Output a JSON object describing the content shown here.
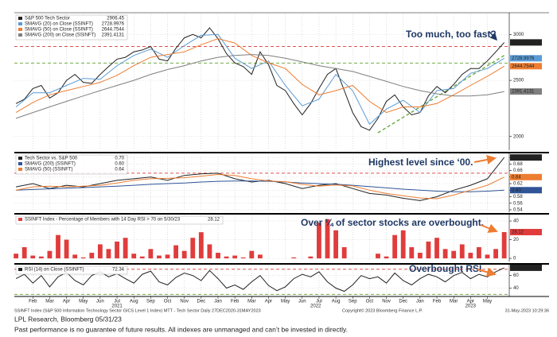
{
  "chart_data": [
    {
      "type": "line",
      "log": true,
      "ylim": [
        1900,
        3250
      ],
      "yticks": [
        3000,
        2500,
        2000
      ],
      "x": [
        0,
        0.5,
        1,
        1.5,
        2,
        2.5,
        3,
        3.5,
        4,
        4.5,
        5,
        5.5,
        6,
        6.5,
        7,
        7.5,
        8,
        8.5,
        9,
        9.5,
        10,
        10.5,
        11,
        11.5,
        12,
        12.5,
        13,
        13.5,
        14,
        14.5,
        15,
        15.5,
        16,
        16.5,
        17,
        17.5,
        18,
        18.5,
        19,
        19.5,
        20,
        20.5,
        21,
        21.5,
        22,
        22.5,
        23,
        23.5,
        24,
        24.5,
        25,
        25.5,
        26,
        26.5,
        27,
        27.5,
        28,
        28.5,
        29
      ],
      "series": [
        {
          "name": "S&P 500 Tech Sector",
          "color": "#222222",
          "last_label": "2906.45",
          "values": [
            2280,
            2320,
            2420,
            2450,
            2330,
            2380,
            2500,
            2560,
            2480,
            2470,
            2560,
            2640,
            2720,
            2740,
            2800,
            2820,
            2860,
            2720,
            2700,
            2840,
            2960,
            3000,
            2960,
            3080,
            2950,
            2780,
            2680,
            2640,
            2560,
            2800,
            2660,
            2450,
            2400,
            2280,
            2180,
            2280,
            2420,
            2560,
            2620,
            2400,
            2200,
            2080,
            2050,
            2150,
            2300,
            2360,
            2250,
            2180,
            2200,
            2350,
            2440,
            2380,
            2460,
            2560,
            2620,
            2620,
            2700,
            2800,
            2906.45
          ]
        },
        {
          "name": "SMAVG (20)  on Close (SSINFT)",
          "color": "#5b9bd5",
          "last_label": "2728.9976",
          "x": [
            0,
            1,
            2,
            3,
            4,
            5,
            6,
            7,
            8,
            9,
            10,
            11,
            12,
            13,
            14,
            15,
            16,
            17,
            18,
            19,
            20,
            21,
            22,
            23,
            24,
            25,
            26,
            27,
            28,
            29
          ],
          "values": [
            2250,
            2380,
            2380,
            2450,
            2520,
            2510,
            2650,
            2760,
            2830,
            2740,
            2870,
            2990,
            3000,
            2730,
            2620,
            2700,
            2450,
            2260,
            2320,
            2560,
            2400,
            2100,
            2230,
            2310,
            2200,
            2400,
            2420,
            2570,
            2620,
            2728.9976
          ]
        },
        {
          "name": "SMAVG (50)  on Close (SSINFT)",
          "color": "#ed7d31",
          "last_label": "2644.7544",
          "x": [
            0,
            1,
            2,
            3,
            4,
            5,
            6,
            7,
            8,
            9,
            10,
            11,
            12,
            13,
            14,
            15,
            16,
            17,
            18,
            19,
            20,
            21,
            22,
            23,
            24,
            25,
            26,
            27,
            28,
            29
          ],
          "values": [
            2200,
            2290,
            2360,
            2400,
            2440,
            2480,
            2550,
            2650,
            2740,
            2770,
            2800,
            2880,
            2950,
            2900,
            2760,
            2680,
            2620,
            2460,
            2360,
            2400,
            2450,
            2300,
            2200,
            2250,
            2250,
            2280,
            2360,
            2450,
            2540,
            2644.7544
          ]
        },
        {
          "name": "SMAVG (200)  on Close (SSINFT)",
          "color": "#7f7f7f",
          "last_label": "2391.4131",
          "x": [
            0,
            1,
            2,
            3,
            4,
            5,
            6,
            7,
            8,
            9,
            10,
            11,
            12,
            13,
            14,
            15,
            16,
            17,
            18,
            19,
            20,
            21,
            22,
            23,
            24,
            25,
            26,
            27,
            28,
            29
          ],
          "values": [
            2150,
            2200,
            2250,
            2300,
            2350,
            2400,
            2450,
            2500,
            2560,
            2610,
            2650,
            2700,
            2740,
            2760,
            2770,
            2760,
            2730,
            2690,
            2650,
            2620,
            2590,
            2540,
            2490,
            2440,
            2400,
            2370,
            2350,
            2350,
            2360,
            2391.4131
          ]
        }
      ],
      "hlines": [
        {
          "value": 2860,
          "color": "#d9534f"
        },
        {
          "value": 2677,
          "color": "#70ad47"
        }
      ],
      "trendline": {
        "x": [
          21.5,
          29
        ],
        "y": [
          2030,
          2760
        ],
        "color": "#70ad47"
      },
      "annotation": "Too much, too fast?"
    },
    {
      "type": "line",
      "ylim": [
        0.535,
        0.71
      ],
      "yticks": [
        {
          "value": 0.7,
          "label": "0.70"
        },
        0.68,
        0.66,
        0.64,
        0.62,
        {
          "value": 0.6,
          "label": "0.60"
        },
        0.58,
        0.56,
        0.54
      ],
      "x": [
        0,
        1,
        2,
        3,
        4,
        5,
        6,
        7,
        8,
        9,
        10,
        11,
        12,
        13,
        14,
        15,
        16,
        17,
        18,
        19,
        20,
        21,
        22,
        23,
        24,
        25,
        26,
        27,
        28,
        29
      ],
      "series": [
        {
          "name": "Tech Sector vs. S&P 500",
          "color": "#222222",
          "last_label": "0.70",
          "values": [
            0.61,
            0.62,
            0.605,
            0.615,
            0.61,
            0.62,
            0.63,
            0.635,
            0.64,
            0.63,
            0.645,
            0.65,
            0.652,
            0.635,
            0.625,
            0.63,
            0.62,
            0.605,
            0.615,
            0.62,
            0.605,
            0.59,
            0.585,
            0.575,
            0.568,
            0.58,
            0.6,
            0.615,
            0.635,
            0.7
          ]
        },
        {
          "name": "SMAVG (200)  (SSINFT)",
          "color": "#2f5597",
          "last_label": "0.60",
          "values": [
            0.6,
            0.602,
            0.604,
            0.606,
            0.608,
            0.61,
            0.612,
            0.615,
            0.618,
            0.62,
            0.622,
            0.625,
            0.627,
            0.628,
            0.628,
            0.627,
            0.625,
            0.622,
            0.62,
            0.618,
            0.615,
            0.611,
            0.607,
            0.603,
            0.6,
            0.597,
            0.595,
            0.595,
            0.597,
            0.6
          ]
        },
        {
          "name": "SMAVG (50)  (SSINFT)",
          "color": "#ed7d31",
          "last_label": "0.64",
          "values": [
            0.6,
            0.61,
            0.612,
            0.61,
            0.612,
            0.615,
            0.622,
            0.63,
            0.635,
            0.636,
            0.638,
            0.643,
            0.648,
            0.645,
            0.635,
            0.628,
            0.626,
            0.618,
            0.612,
            0.616,
            0.613,
            0.6,
            0.59,
            0.583,
            0.576,
            0.574,
            0.585,
            0.6,
            0.615,
            0.64
          ]
        }
      ],
      "hlines": [
        {
          "value": 0.652,
          "color": "#d9534f"
        }
      ],
      "annotation": "Highest level since ‘00."
    },
    {
      "type": "bar",
      "ylim": [
        -2.5,
        46
      ],
      "yticks": [
        0,
        20,
        40
      ],
      "x": [
        0,
        0.5,
        1,
        1.5,
        2,
        2.5,
        3,
        3.5,
        4,
        4.5,
        5,
        5.5,
        6,
        6.5,
        7,
        7.5,
        8,
        8.5,
        9,
        9.5,
        10,
        10.5,
        11,
        11.5,
        12,
        12.5,
        13,
        13.5,
        14,
        14.5,
        15,
        15.5,
        16,
        16.5,
        17,
        17.5,
        18,
        18.5,
        19,
        19.5,
        20,
        20.5,
        21,
        21.5,
        22,
        22.5,
        23,
        23.5,
        24,
        24.5,
        25,
        25.5,
        26,
        26.5,
        27,
        27.5,
        28,
        28.5,
        29
      ],
      "series": [
        {
          "name": "SSINFT Index - Percentage of Members with 14 Day RSI > 70 on 5/30/23",
          "color": "#e03c3c",
          "last_label": "28.12",
          "values": [
            5,
            12,
            3,
            2,
            8,
            25,
            20,
            4,
            1,
            6,
            15,
            10,
            18,
            22,
            5,
            2,
            10,
            3,
            4,
            14,
            8,
            22,
            28,
            15,
            6,
            2,
            3,
            1,
            8,
            4,
            0,
            0,
            0,
            1,
            0,
            2,
            38,
            42,
            30,
            12,
            0,
            0,
            0,
            5,
            2,
            25,
            30,
            12,
            6,
            18,
            22,
            10,
            8,
            15,
            6,
            12,
            4,
            10,
            28.12
          ]
        }
      ],
      "annotation": "Over ¼ of sector stocks are overbought."
    },
    {
      "type": "line",
      "ylim": [
        28,
        76
      ],
      "yticks": [
        40,
        60
      ],
      "xlim": [
        -0.1,
        29.3
      ],
      "x": [
        0,
        0.5,
        1,
        1.5,
        2,
        2.5,
        3,
        3.5,
        4,
        4.5,
        5,
        5.5,
        6,
        6.5,
        7,
        7.5,
        8,
        8.5,
        9,
        9.5,
        10,
        10.5,
        11,
        11.5,
        12,
        12.5,
        13,
        13.5,
        14,
        14.5,
        15,
        15.5,
        16,
        16.5,
        17,
        17.5,
        18,
        18.5,
        19,
        19.5,
        20,
        20.5,
        21,
        21.5,
        22,
        22.5,
        23,
        23.5,
        24,
        24.5,
        25,
        25.5,
        26,
        26.5,
        27,
        27.5,
        28,
        28.5,
        29
      ],
      "series": [
        {
          "name": "RSI (14)  on Close (SSINFT)",
          "color": "#222222",
          "last_label": "72.34",
          "values": [
            55,
            62,
            48,
            60,
            42,
            58,
            65,
            52,
            45,
            60,
            66,
            58,
            63,
            55,
            48,
            62,
            67,
            50,
            45,
            57,
            64,
            60,
            52,
            68,
            55,
            40,
            45,
            38,
            50,
            60,
            44,
            36,
            42,
            55,
            62,
            58,
            66,
            50,
            40,
            35,
            45,
            60,
            55,
            58,
            48,
            64,
            52,
            45,
            55,
            62,
            58,
            50,
            60,
            65,
            55,
            62,
            58,
            66,
            72.34
          ]
        }
      ],
      "hlines": [
        {
          "value": 70,
          "color": "#d9534f"
        },
        {
          "value": 30,
          "color": "#70ad47"
        }
      ],
      "xticks": [
        {
          "value": 1,
          "label": "Feb"
        },
        {
          "value": 2,
          "label": "Mar"
        },
        {
          "value": 3,
          "label": "Apr"
        },
        {
          "value": 4,
          "label": "May"
        },
        {
          "value": 5,
          "label": "Jun"
        },
        {
          "value": 6,
          "label": "Jul"
        },
        {
          "value": 7,
          "label": "Aug"
        },
        {
          "value": 8,
          "label": "Sep"
        },
        {
          "value": 9,
          "label": "Oct"
        },
        {
          "value": 10,
          "label": "Nov"
        },
        {
          "value": 11,
          "label": "Dec"
        },
        {
          "value": 12,
          "label": "Jan"
        },
        {
          "value": 13,
          "label": "Feb"
        },
        {
          "value": 14,
          "label": "Mar"
        },
        {
          "value": 15,
          "label": "Apr"
        },
        {
          "value": 16,
          "label": "May"
        },
        {
          "value": 17,
          "label": "Jun"
        },
        {
          "value": 18,
          "label": "Jul"
        },
        {
          "value": 19,
          "label": "Aug"
        },
        {
          "value": 20,
          "label": "Sep"
        },
        {
          "value": 21,
          "label": "Oct"
        },
        {
          "value": 22,
          "label": "Nov"
        },
        {
          "value": 23,
          "label": "Dec"
        },
        {
          "value": 24,
          "label": "Jan"
        },
        {
          "value": 25,
          "label": "Feb"
        },
        {
          "value": 26,
          "label": "Mar"
        },
        {
          "value": 27,
          "label": "Apr"
        },
        {
          "value": 28,
          "label": "May"
        }
      ],
      "year_labels": [
        {
          "value": 6,
          "label": "2021"
        },
        {
          "value": 17.8,
          "label": "2022"
        },
        {
          "value": 27,
          "label": "2023"
        }
      ],
      "annotation": "Overbought RSI"
    }
  ],
  "footer": {
    "chart_info": "SSINFT Index (S&P 500 Information Technology Sector GICS Level 1 Index) MTT - Tech Sector  Daily 27DEC2020-31MAY2023",
    "copyright": "Copyright© 2023 Bloomberg Finance L.P.",
    "timestamp": "31-May-2023 10:29:36",
    "source": "LPL Research, Bloomberg 05/31/23",
    "disclaimer": "Past performance is no guarantee of future results. All indexes are unmanaged and can’t be invested in directly."
  }
}
